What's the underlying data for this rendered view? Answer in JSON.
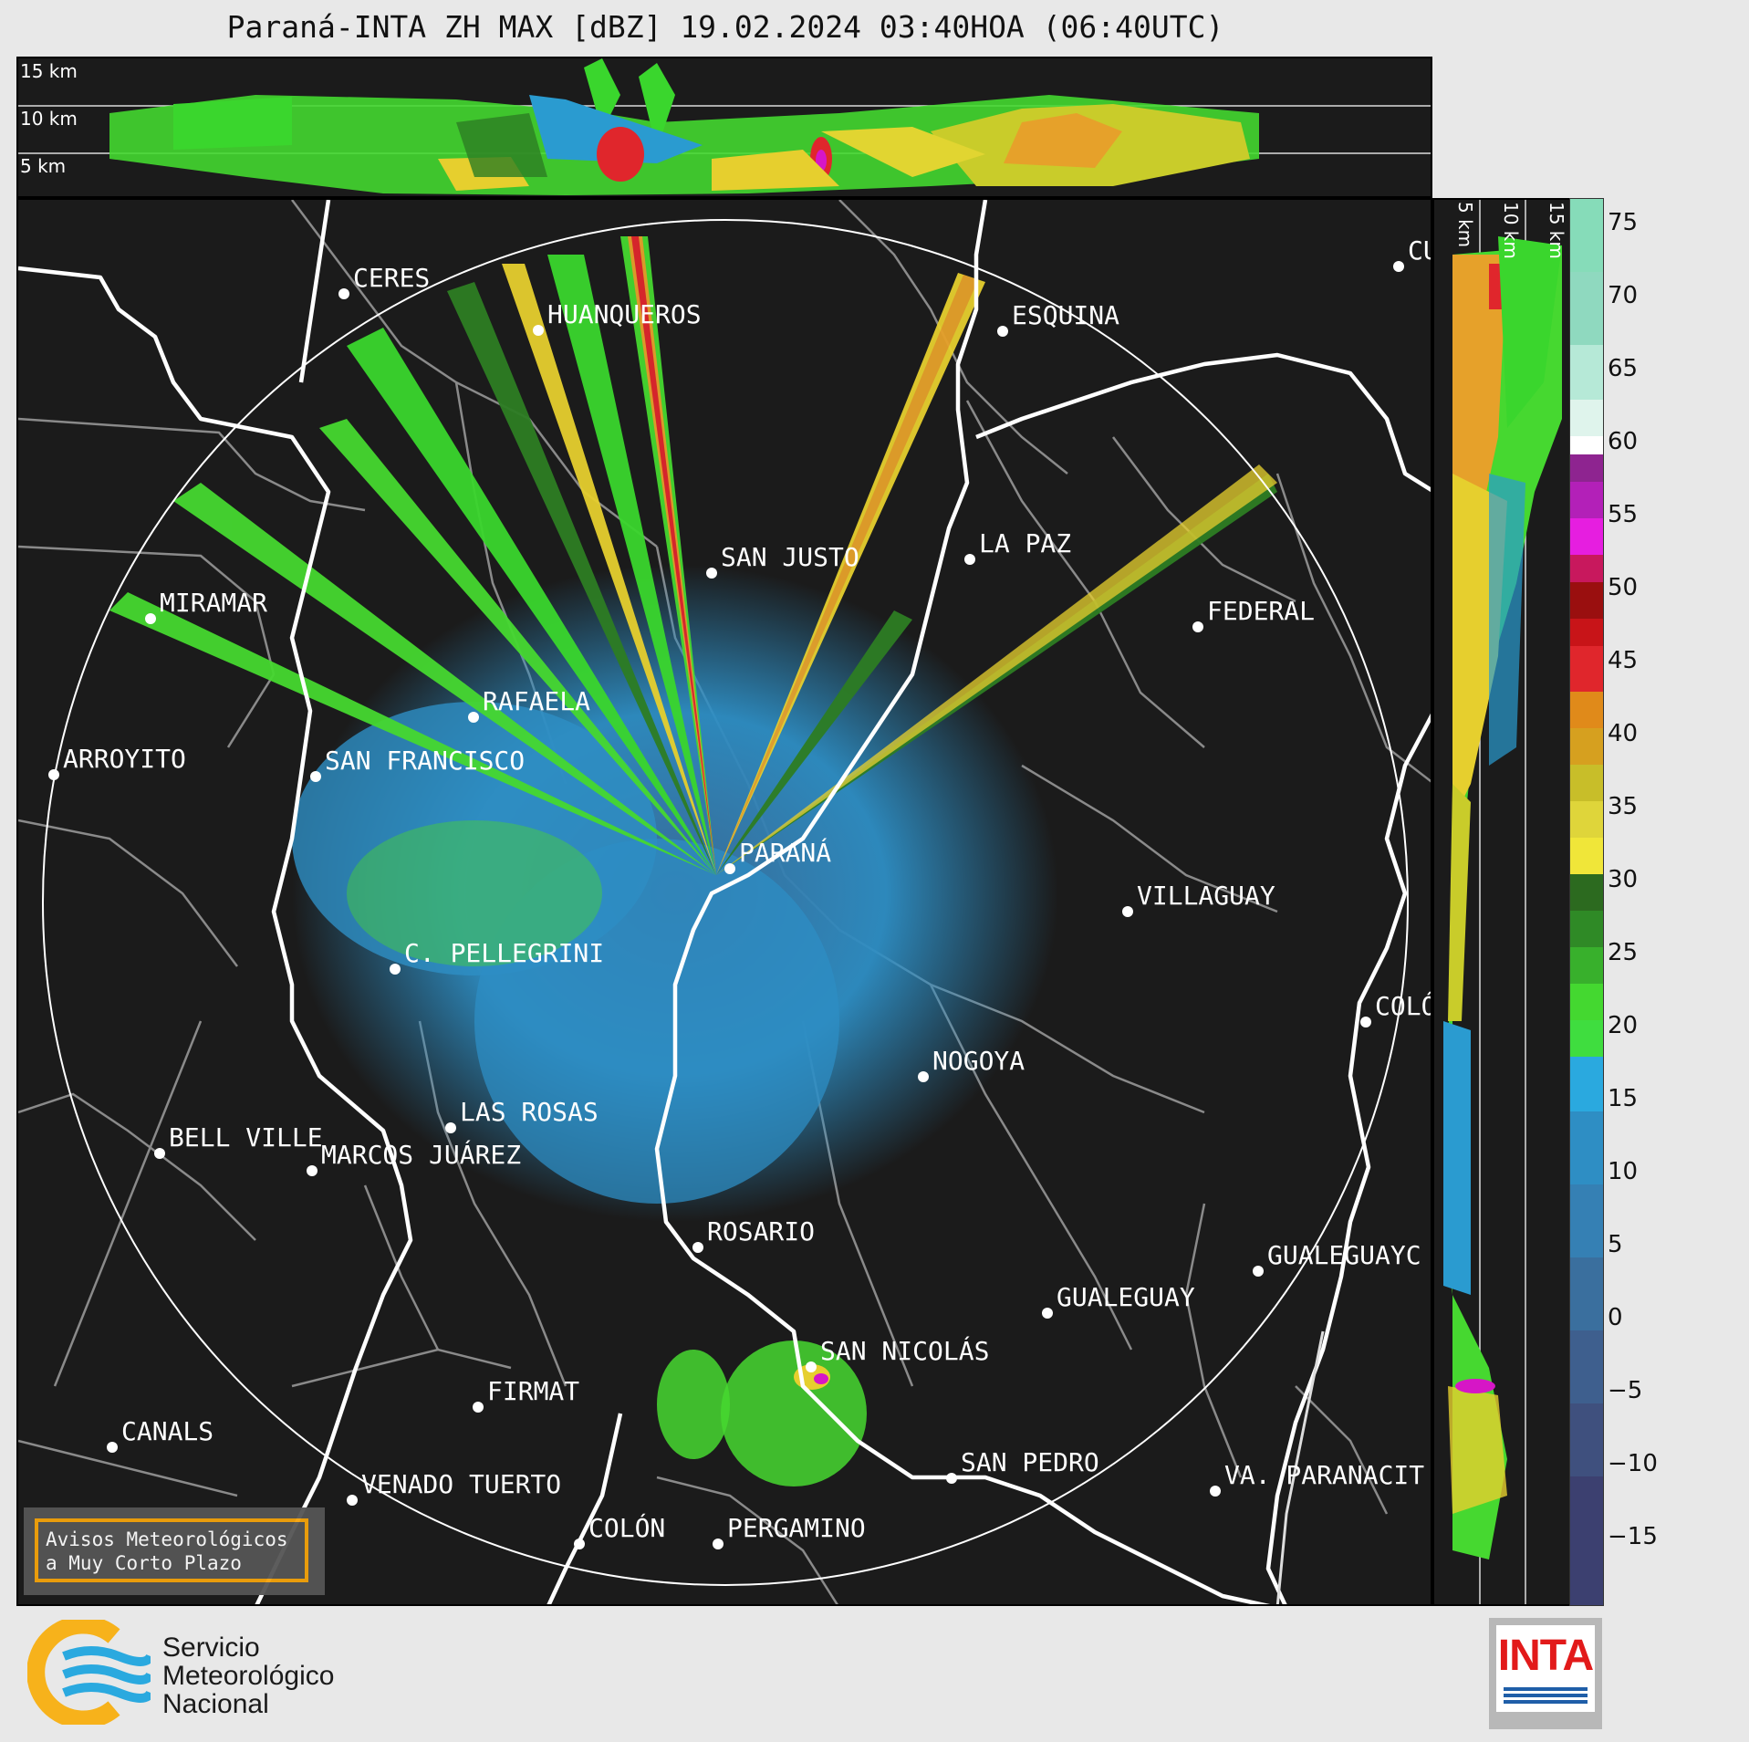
{
  "title": "Paraná-INTA ZH MAX [dBZ] 19.02.2024 03:40HOA (06:40UTC)",
  "top_panel": {
    "height_labels": [
      "15 km",
      "10 km",
      "5 km"
    ]
  },
  "side_panel": {
    "height_labels": [
      "5 km",
      "10 km",
      "15 km"
    ]
  },
  "colorbar": {
    "ticks": [
      "75",
      "70",
      "65",
      "60",
      "55",
      "50",
      "45",
      "40",
      "35",
      "30",
      "25",
      "20",
      "15",
      "10",
      "5",
      "0",
      "−5",
      "−10",
      "−15"
    ]
  },
  "cities": [
    {
      "name": "CERES"
    },
    {
      "name": "HUANQUEROS"
    },
    {
      "name": "ESQUINA"
    },
    {
      "name": "CU"
    },
    {
      "name": "SAN JUSTO"
    },
    {
      "name": "LA PAZ"
    },
    {
      "name": "FEDERAL"
    },
    {
      "name": "MIRAMAR"
    },
    {
      "name": "RAFAELA"
    },
    {
      "name": "ARROYITO"
    },
    {
      "name": "SAN FRANCISCO"
    },
    {
      "name": "PARANÁ"
    },
    {
      "name": "VILLAGUAY"
    },
    {
      "name": "C. PELLEGRINI"
    },
    {
      "name": "COLÓ"
    },
    {
      "name": "NOGOYA"
    },
    {
      "name": "LAS ROSAS"
    },
    {
      "name": "BELL VILLE"
    },
    {
      "name": "MARCOS JUÁREZ"
    },
    {
      "name": "ROSARIO"
    },
    {
      "name": "GUALEGUAYC"
    },
    {
      "name": "GUALEGUAY"
    },
    {
      "name": "SAN NICOLÁS"
    },
    {
      "name": "FIRMAT"
    },
    {
      "name": "CANALS"
    },
    {
      "name": "SAN PEDRO"
    },
    {
      "name": "VENADO TUERTO"
    },
    {
      "name": "VA. PARANACIT"
    },
    {
      "name": "COLÓN"
    },
    {
      "name": "PERGAMINO"
    }
  ],
  "notice": {
    "line1": "Avisos Meteorológicos",
    "line2": "a Muy Corto Plazo"
  },
  "smn": {
    "line1": "Servicio",
    "line2": "Meteorológico",
    "line3": "Nacional"
  },
  "inta": {
    "text": "INTA"
  }
}
